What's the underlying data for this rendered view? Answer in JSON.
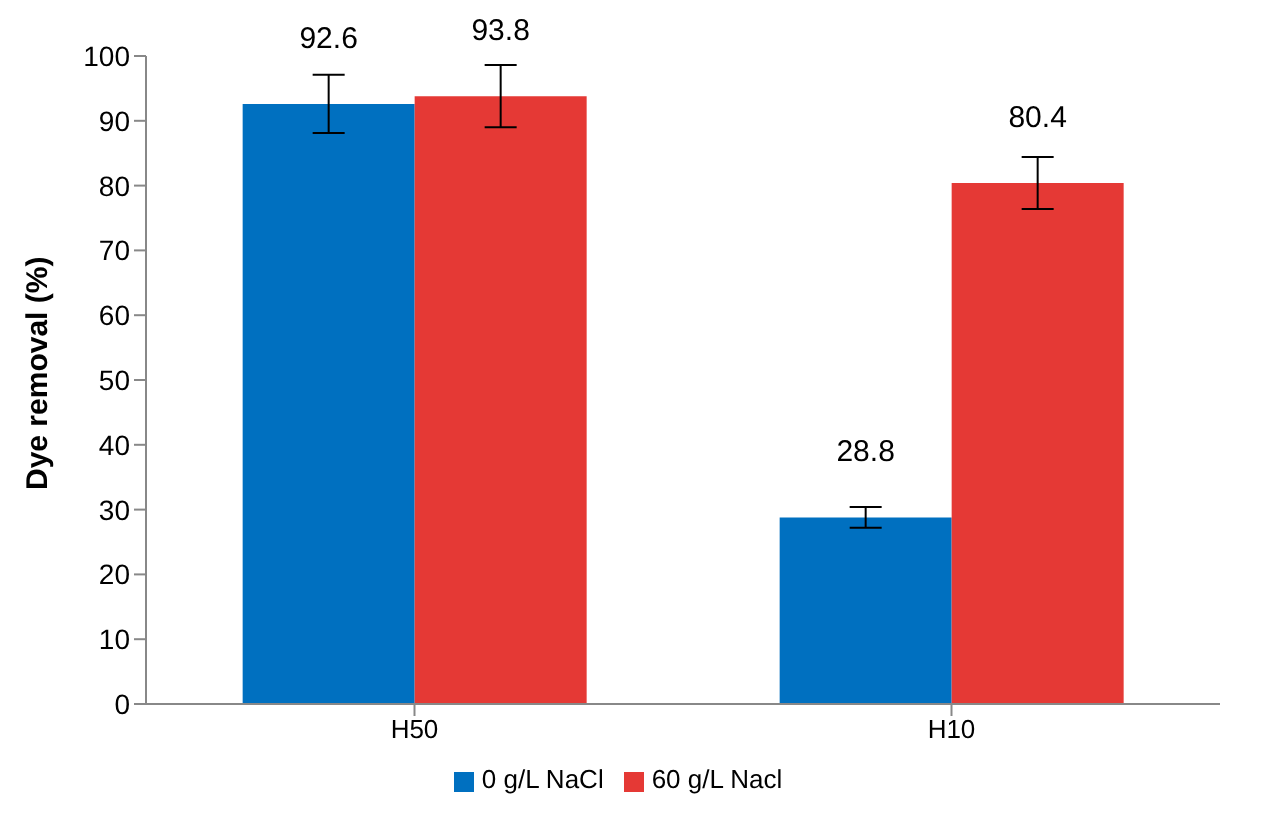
{
  "chart_data": {
    "type": "bar",
    "ylabel": "Dye removal (%)",
    "categories": [
      "H50",
      "H10"
    ],
    "series": [
      {
        "name": "0 g/L NaCl",
        "color": "#0070c0",
        "values": [
          92.6,
          28.8
        ],
        "errors": [
          4.5,
          1.6
        ]
      },
      {
        "name": "60 g/L Nacl",
        "color": "#e53935",
        "values": [
          93.8,
          80.4
        ],
        "errors": [
          4.8,
          4
        ]
      }
    ],
    "ylim": [
      0,
      100
    ],
    "yticks": [
      0,
      10,
      20,
      30,
      40,
      50,
      60,
      70,
      80,
      90,
      100
    ],
    "grid": false,
    "legend": "bottom",
    "data_labels": true
  }
}
